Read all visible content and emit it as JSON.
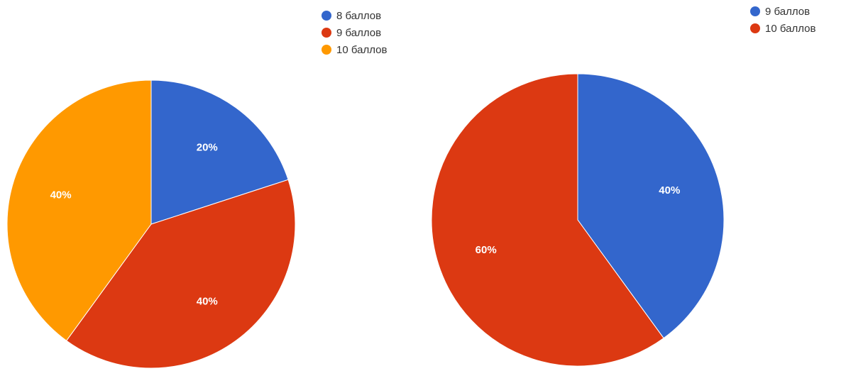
{
  "chart_data": [
    {
      "type": "pie",
      "title": "",
      "legend_position": "top-right",
      "slices": [
        {
          "label": "8 баллов",
          "value": 20,
          "display": "20%",
          "color": "#3366cc"
        },
        {
          "label": "9 баллов",
          "value": 40,
          "display": "40%",
          "color": "#dc3912"
        },
        {
          "label": "10 баллов",
          "value": 40,
          "display": "40%",
          "color": "#ff9900"
        }
      ]
    },
    {
      "type": "pie",
      "title": "",
      "legend_position": "top-right",
      "slices": [
        {
          "label": "9 баллов",
          "value": 40,
          "display": "40%",
          "color": "#3366cc"
        },
        {
          "label": "10 баллов",
          "value": 60,
          "display": "60%",
          "color": "#dc3912"
        }
      ]
    }
  ]
}
